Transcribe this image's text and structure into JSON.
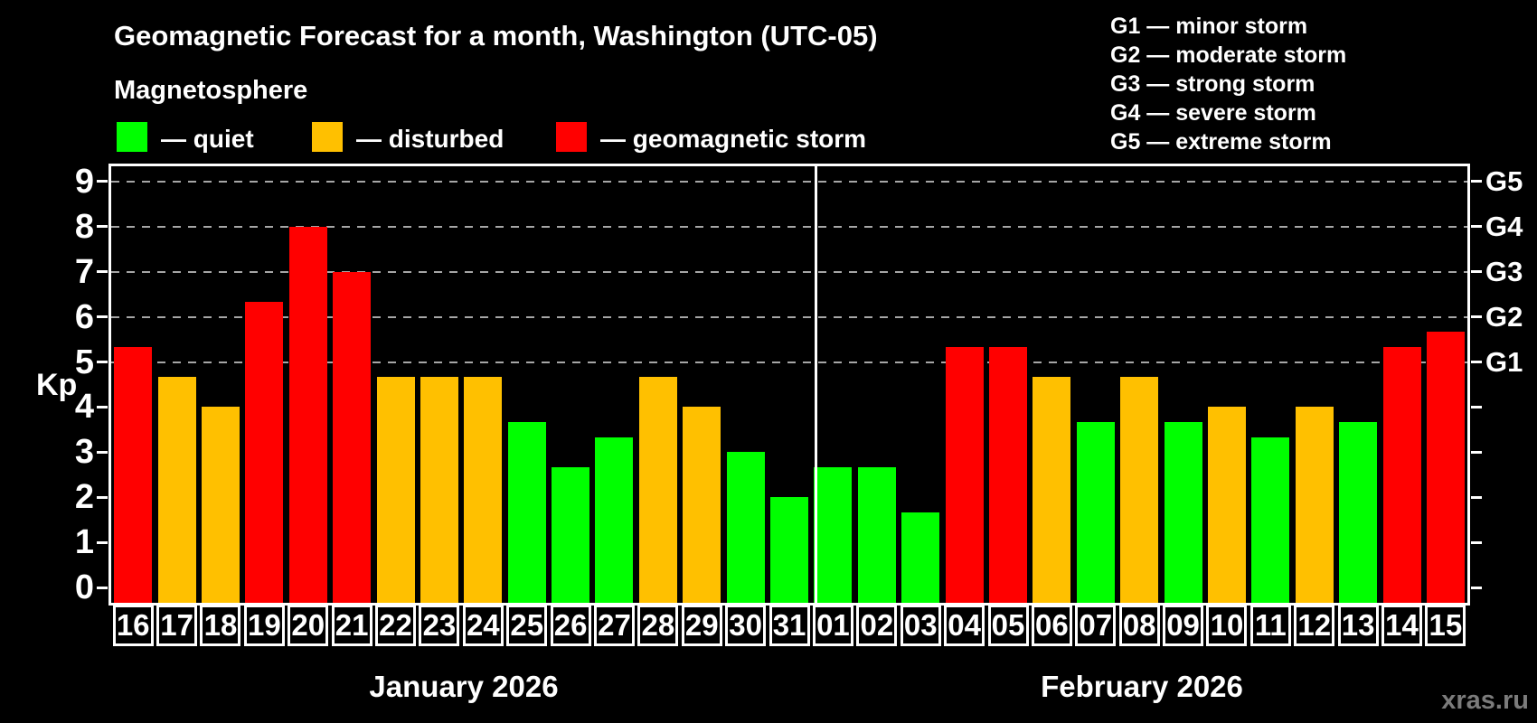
{
  "title": "Geomagnetic Forecast for a month, Washington (UTC-05)",
  "subtitle": "Magnetosphere",
  "legend": [
    {
      "status": "quiet",
      "label": "— quiet",
      "color": "#00ff00"
    },
    {
      "status": "disturbed",
      "label": "— disturbed",
      "color": "#ffc000"
    },
    {
      "status": "storm",
      "label": "— geomagnetic storm",
      "color": "#ff0000"
    }
  ],
  "g_scale_legend": [
    "G1 — minor storm",
    "G2 — moderate storm",
    "G3 — strong storm",
    "G4 — severe storm",
    "G5 — extreme storm"
  ],
  "watermark": "xras.ru",
  "chart_data": {
    "type": "bar",
    "title": "Geomagnetic Forecast for a month, Washington (UTC-05)",
    "ylabel": "Kp",
    "ylim": [
      0,
      9.4
    ],
    "yticks": [
      0,
      1,
      2,
      3,
      4,
      5,
      6,
      7,
      8,
      9
    ],
    "gridlines_at": [
      5,
      6,
      7,
      8,
      9
    ],
    "grid_style": "horizontal dashed gray",
    "legend_position": "top-left",
    "right_axis": [
      {
        "kp": 5,
        "label": "G1"
      },
      {
        "kp": 6,
        "label": "G2"
      },
      {
        "kp": 7,
        "label": "G3"
      },
      {
        "kp": 8,
        "label": "G4"
      },
      {
        "kp": 9,
        "label": "G5"
      }
    ],
    "months": [
      {
        "label": "January 2026",
        "days": [
          {
            "day": "16",
            "kp": 5.33,
            "status": "storm"
          },
          {
            "day": "17",
            "kp": 4.67,
            "status": "disturbed"
          },
          {
            "day": "18",
            "kp": 4.0,
            "status": "disturbed"
          },
          {
            "day": "19",
            "kp": 6.33,
            "status": "storm"
          },
          {
            "day": "20",
            "kp": 8.0,
            "status": "storm"
          },
          {
            "day": "21",
            "kp": 7.0,
            "status": "storm"
          },
          {
            "day": "22",
            "kp": 4.67,
            "status": "disturbed"
          },
          {
            "day": "23",
            "kp": 4.67,
            "status": "disturbed"
          },
          {
            "day": "24",
            "kp": 4.67,
            "status": "disturbed"
          },
          {
            "day": "25",
            "kp": 3.67,
            "status": "quiet"
          },
          {
            "day": "26",
            "kp": 2.67,
            "status": "quiet"
          },
          {
            "day": "27",
            "kp": 3.33,
            "status": "quiet"
          },
          {
            "day": "28",
            "kp": 4.67,
            "status": "disturbed"
          },
          {
            "day": "29",
            "kp": 4.0,
            "status": "disturbed"
          },
          {
            "day": "30",
            "kp": 3.0,
            "status": "quiet"
          },
          {
            "day": "31",
            "kp": 2.0,
            "status": "quiet"
          }
        ]
      },
      {
        "label": "February 2026",
        "days": [
          {
            "day": "01",
            "kp": 2.67,
            "status": "quiet"
          },
          {
            "day": "02",
            "kp": 2.67,
            "status": "quiet"
          },
          {
            "day": "03",
            "kp": 1.67,
            "status": "quiet"
          },
          {
            "day": "04",
            "kp": 5.33,
            "status": "storm"
          },
          {
            "day": "05",
            "kp": 5.33,
            "status": "storm"
          },
          {
            "day": "06",
            "kp": 4.67,
            "status": "disturbed"
          },
          {
            "day": "07",
            "kp": 3.67,
            "status": "quiet"
          },
          {
            "day": "08",
            "kp": 4.67,
            "status": "disturbed"
          },
          {
            "day": "09",
            "kp": 3.67,
            "status": "quiet"
          },
          {
            "day": "10",
            "kp": 4.0,
            "status": "disturbed"
          },
          {
            "day": "11",
            "kp": 3.33,
            "status": "quiet"
          },
          {
            "day": "12",
            "kp": 4.0,
            "status": "disturbed"
          },
          {
            "day": "13",
            "kp": 3.67,
            "status": "quiet"
          },
          {
            "day": "14",
            "kp": 5.33,
            "status": "storm"
          },
          {
            "day": "15",
            "kp": 5.67,
            "status": "storm"
          }
        ]
      }
    ]
  }
}
